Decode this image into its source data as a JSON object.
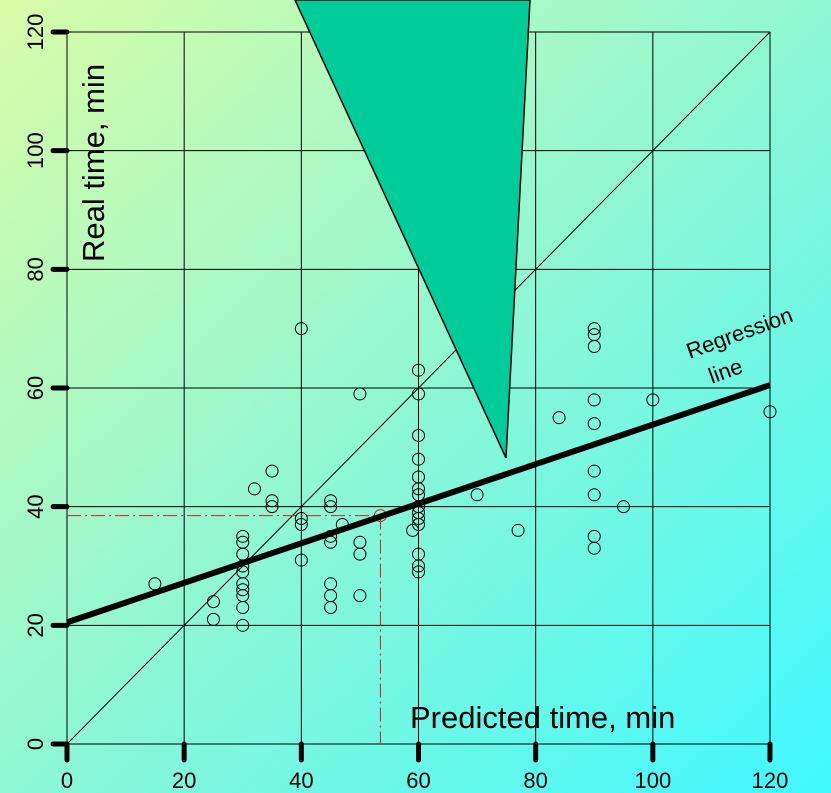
{
  "chart_data": {
    "type": "scatter",
    "x_label": "Predicted time, min",
    "y_label": "Real time, min",
    "regression_label": [
      "Regression",
      "line"
    ],
    "xlim": [
      0,
      120
    ],
    "ylim": [
      0,
      120
    ],
    "xticks": [
      0,
      20,
      40,
      60,
      80,
      100,
      120
    ],
    "yticks": [
      0,
      20,
      40,
      60,
      80,
      100,
      120
    ],
    "grid": true,
    "diagonal": true,
    "x": [
      15,
      25,
      25,
      32,
      30,
      30,
      30,
      30,
      30,
      30,
      30,
      30,
      30,
      30,
      35,
      35,
      35,
      40,
      40,
      40,
      40,
      45,
      45,
      45,
      45,
      45,
      45,
      45,
      47,
      50,
      50,
      50,
      50,
      59,
      60,
      60,
      60,
      60,
      60,
      60,
      60,
      60,
      60,
      60,
      60,
      60,
      60,
      60,
      70,
      77,
      84,
      90,
      90,
      90,
      90,
      90,
      90,
      90,
      90,
      90,
      95,
      100,
      120
    ],
    "y": [
      27,
      24,
      21,
      43,
      35,
      34,
      32,
      30,
      29,
      27,
      26,
      25,
      23,
      20,
      46,
      41,
      40,
      70,
      38,
      37,
      31,
      41,
      40,
      35,
      34,
      27,
      25,
      23,
      37,
      59,
      34,
      32,
      25,
      36,
      63,
      59,
      52,
      48,
      45,
      43,
      42,
      40,
      39,
      38,
      37,
      32,
      30,
      29,
      42,
      36,
      55,
      70,
      69,
      67,
      58,
      54,
      46,
      42,
      35,
      33,
      40,
      58,
      56
    ],
    "regression_line": {
      "x": [
        0,
        120
      ],
      "y": [
        20.5,
        60.5
      ]
    },
    "reference_point": {
      "x": 53.5,
      "y": 38.5
    }
  }
}
